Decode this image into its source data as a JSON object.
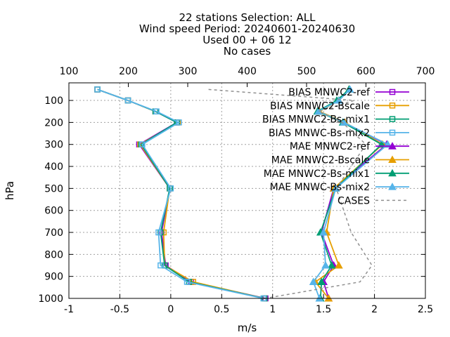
{
  "chart_data": {
    "type": "line",
    "title_lines": [
      "22 stations Selection: ALL",
      "Wind speed  Period: 20240601-20240630",
      "Used 00 + 06 12",
      "No cases"
    ],
    "xlabel": "m/s",
    "ylabel": "hPa",
    "xlim": [
      -1,
      2.5
    ],
    "x2lim": [
      100,
      700
    ],
    "ylim": [
      1000,
      20
    ],
    "x_ticks": [
      "-1",
      "-0.5",
      "0",
      "0.5",
      "1",
      "1.5",
      "2",
      "2.5"
    ],
    "x2_ticks": [
      "100",
      "200",
      "300",
      "400",
      "500",
      "600",
      "700"
    ],
    "y_ticks": [
      "100",
      "200",
      "300",
      "400",
      "500",
      "600",
      "700",
      "800",
      "900",
      "1000"
    ],
    "grid": true,
    "legend_position": "top-right",
    "levels": [
      50,
      100,
      150,
      200,
      300,
      400,
      500,
      700,
      850,
      925,
      1000
    ],
    "series": [
      {
        "name": "BIAS MNWC2-ref",
        "color": "#9400d3",
        "marker": "square",
        "values": [
          -0.72,
          -0.42,
          -0.15,
          0.06,
          -0.31,
          null,
          -0.01,
          -0.09,
          -0.05,
          0.2,
          0.93
        ]
      },
      {
        "name": "BIAS MNWC2-Bscale",
        "color": "#e69f00",
        "marker": "square",
        "values": [
          -0.72,
          -0.42,
          -0.15,
          0.07,
          -0.3,
          null,
          -0.01,
          -0.07,
          -0.06,
          0.22,
          0.92
        ]
      },
      {
        "name": "BIAS MNWC2-Bs-mix1",
        "color": "#009e73",
        "marker": "square",
        "values": [
          -0.72,
          -0.42,
          -0.15,
          0.06,
          -0.29,
          null,
          -0.01,
          -0.1,
          -0.06,
          0.18,
          0.92
        ]
      },
      {
        "name": "BIAS MNWC-Bs-mix2",
        "color": "#56b4e9",
        "marker": "square",
        "values": [
          -0.72,
          -0.42,
          -0.14,
          0.08,
          -0.28,
          null,
          0.0,
          -0.12,
          -0.1,
          0.16,
          0.91
        ]
      },
      {
        "name": "MAE MNWC2-ref",
        "color": "#9400d3",
        "marker": "triangle",
        "values": [
          1.75,
          1.65,
          1.45,
          1.7,
          2.12,
          null,
          1.6,
          1.48,
          1.6,
          1.5,
          1.55
        ]
      },
      {
        "name": "MAE MNWC2-Bscale",
        "color": "#e69f00",
        "marker": "triangle",
        "values": [
          1.75,
          1.65,
          1.46,
          1.71,
          2.08,
          null,
          1.6,
          1.53,
          1.65,
          1.42,
          1.55
        ]
      },
      {
        "name": "MAE MNWC2-Bs-mix1",
        "color": "#009e73",
        "marker": "triangle",
        "values": [
          1.75,
          1.63,
          1.44,
          1.69,
          2.07,
          null,
          1.62,
          1.47,
          1.58,
          1.48,
          1.47
        ]
      },
      {
        "name": "MAE MNWC-Bs-mix2",
        "color": "#56b4e9",
        "marker": "triangle",
        "values": [
          1.76,
          1.65,
          1.45,
          1.7,
          2.13,
          null,
          1.62,
          1.5,
          1.52,
          1.4,
          1.46
        ]
      },
      {
        "name": "CASES",
        "color": "#909090",
        "marker": "none",
        "dashed": true,
        "axis": "x2",
        "values": [
          335,
          580,
          520,
          560,
          600,
          null,
          550,
          575,
          610,
          590,
          430
        ]
      }
    ]
  }
}
